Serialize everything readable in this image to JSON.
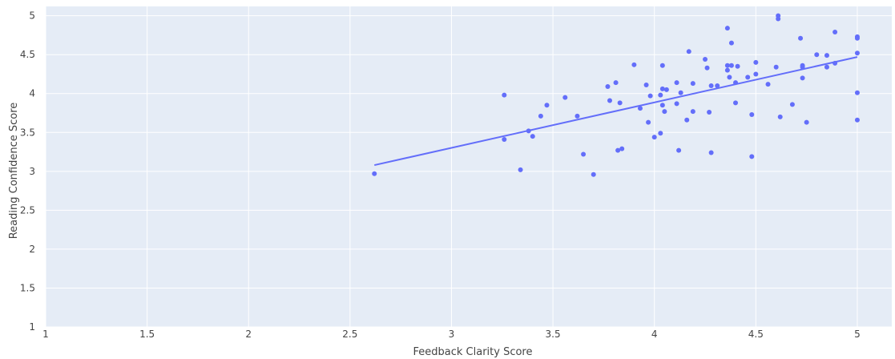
{
  "chart_data": {
    "type": "scatter",
    "xlabel": "Feedback Clarity Score",
    "ylabel": "Reading Confidence Score",
    "xlim": [
      1,
      5.17
    ],
    "ylim": [
      1,
      5.12
    ],
    "x_ticks": [
      "1",
      "1.5",
      "2",
      "2.5",
      "3",
      "3.5",
      "4",
      "4.5",
      "5"
    ],
    "y_ticks": [
      "1",
      "1.5",
      "2",
      "2.5",
      "3",
      "3.5",
      "4",
      "4.5",
      "5"
    ],
    "grid": true,
    "legend": "none",
    "colors": {
      "plot_bg": "#e5ecf6",
      "grid": "#ffffff",
      "marker": "#636efa",
      "trend": "#636efa"
    },
    "series": [
      {
        "points": [
          [
            2.62,
            2.97
          ],
          [
            3.26,
            3.98
          ],
          [
            3.26,
            3.41
          ],
          [
            3.34,
            3.02
          ],
          [
            3.38,
            3.52
          ],
          [
            3.4,
            3.45
          ],
          [
            3.44,
            3.71
          ],
          [
            3.47,
            3.85
          ],
          [
            3.56,
            3.95
          ],
          [
            3.62,
            3.71
          ],
          [
            3.65,
            3.22
          ],
          [
            3.7,
            2.96
          ],
          [
            3.77,
            4.09
          ],
          [
            3.78,
            3.91
          ],
          [
            3.81,
            4.14
          ],
          [
            3.82,
            3.27
          ],
          [
            3.83,
            3.88
          ],
          [
            3.84,
            3.29
          ],
          [
            3.9,
            4.37
          ],
          [
            3.93,
            3.81
          ],
          [
            3.96,
            4.11
          ],
          [
            3.97,
            3.63
          ],
          [
            3.98,
            3.97
          ],
          [
            4.0,
            3.44
          ],
          [
            4.03,
            3.98
          ],
          [
            4.03,
            3.49
          ],
          [
            4.04,
            4.06
          ],
          [
            4.04,
            3.85
          ],
          [
            4.04,
            4.36
          ],
          [
            4.05,
            3.77
          ],
          [
            4.06,
            4.05
          ],
          [
            4.11,
            4.14
          ],
          [
            4.11,
            3.87
          ],
          [
            4.12,
            3.27
          ],
          [
            4.13,
            4.01
          ],
          [
            4.16,
            3.66
          ],
          [
            4.17,
            4.54
          ],
          [
            4.19,
            3.77
          ],
          [
            4.19,
            4.13
          ],
          [
            4.25,
            4.44
          ],
          [
            4.26,
            4.33
          ],
          [
            4.27,
            3.76
          ],
          [
            4.28,
            4.1
          ],
          [
            4.28,
            3.24
          ],
          [
            4.31,
            4.1
          ],
          [
            4.36,
            4.84
          ],
          [
            4.36,
            4.36
          ],
          [
            4.36,
            4.3
          ],
          [
            4.37,
            4.21
          ],
          [
            4.38,
            4.36
          ],
          [
            4.38,
            4.65
          ],
          [
            4.4,
            4.14
          ],
          [
            4.4,
            3.88
          ],
          [
            4.41,
            4.35
          ],
          [
            4.46,
            4.21
          ],
          [
            4.48,
            3.73
          ],
          [
            4.48,
            3.19
          ],
          [
            4.5,
            4.25
          ],
          [
            4.5,
            4.4
          ],
          [
            4.56,
            4.12
          ],
          [
            4.6,
            4.34
          ],
          [
            4.61,
            5.0
          ],
          [
            4.61,
            4.96
          ],
          [
            4.62,
            3.7
          ],
          [
            4.68,
            3.86
          ],
          [
            4.72,
            4.71
          ],
          [
            4.73,
            4.36
          ],
          [
            4.73,
            4.34
          ],
          [
            4.73,
            4.2
          ],
          [
            4.75,
            3.63
          ],
          [
            4.8,
            4.5
          ],
          [
            4.85,
            4.49
          ],
          [
            4.85,
            4.34
          ],
          [
            4.89,
            4.79
          ],
          [
            4.89,
            4.39
          ],
          [
            5.0,
            4.73
          ],
          [
            5.0,
            4.71
          ],
          [
            5.0,
            4.52
          ],
          [
            5.0,
            4.01
          ],
          [
            5.0,
            3.66
          ]
        ]
      }
    ],
    "trendline": {
      "x": [
        2.62,
        5.0
      ],
      "y": [
        3.08,
        4.47
      ]
    }
  }
}
